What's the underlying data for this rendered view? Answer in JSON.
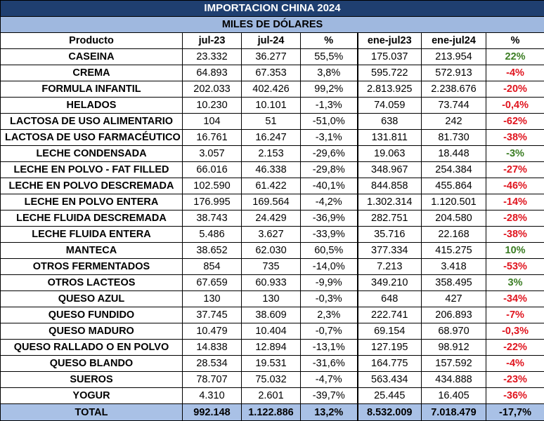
{
  "title": "IMPORTACION CHINA 2024",
  "subtitle": "MILES DE DÓLARES",
  "columns": [
    "Producto",
    "jul-23",
    "jul-24",
    "%",
    "ene-jul23",
    "ene-jul24",
    "%"
  ],
  "rows": [
    {
      "producto": "CASEINA",
      "jul23": "23.332",
      "jul24": "36.277",
      "pct": "55,5%",
      "enejul23": "175.037",
      "enejul24": "213.954",
      "pct_ytd": "22%",
      "trend": "pos"
    },
    {
      "producto": "CREMA",
      "jul23": "64.893",
      "jul24": "67.353",
      "pct": "3,8%",
      "enejul23": "595.722",
      "enejul24": "572.913",
      "pct_ytd": "-4%",
      "trend": "neg"
    },
    {
      "producto": "FORMULA INFANTIL",
      "jul23": "202.033",
      "jul24": "402.426",
      "pct": "99,2%",
      "enejul23": "2.813.925",
      "enejul24": "2.238.676",
      "pct_ytd": "-20%",
      "trend": "neg"
    },
    {
      "producto": "HELADOS",
      "jul23": "10.230",
      "jul24": "10.101",
      "pct": "-1,3%",
      "enejul23": "74.059",
      "enejul24": "73.744",
      "pct_ytd": "-0,4%",
      "trend": "neg"
    },
    {
      "producto": "LACTOSA DE USO ALIMENTARIO",
      "jul23": "104",
      "jul24": "51",
      "pct": "-51,0%",
      "enejul23": "638",
      "enejul24": "242",
      "pct_ytd": "-62%",
      "trend": "neg"
    },
    {
      "producto": "LACTOSA DE USO FARMACÉUTICO",
      "jul23": "16.761",
      "jul24": "16.247",
      "pct": "-3,1%",
      "enejul23": "131.811",
      "enejul24": "81.730",
      "pct_ytd": "-38%",
      "trend": "neg"
    },
    {
      "producto": "LECHE CONDENSADA",
      "jul23": "3.057",
      "jul24": "2.153",
      "pct": "-29,6%",
      "enejul23": "19.063",
      "enejul24": "18.448",
      "pct_ytd": "-3%",
      "trend": "pos"
    },
    {
      "producto": "LECHE EN POLVO - FAT FILLED",
      "jul23": "66.016",
      "jul24": "46.338",
      "pct": "-29,8%",
      "enejul23": "348.967",
      "enejul24": "254.384",
      "pct_ytd": "-27%",
      "trend": "neg"
    },
    {
      "producto": "LECHE EN POLVO DESCREMADA",
      "jul23": "102.590",
      "jul24": "61.422",
      "pct": "-40,1%",
      "enejul23": "844.858",
      "enejul24": "455.864",
      "pct_ytd": "-46%",
      "trend": "neg"
    },
    {
      "producto": "LECHE EN POLVO ENTERA",
      "jul23": "176.995",
      "jul24": "169.564",
      "pct": "-4,2%",
      "enejul23": "1.302.314",
      "enejul24": "1.120.501",
      "pct_ytd": "-14%",
      "trend": "neg"
    },
    {
      "producto": "LECHE FLUIDA DESCREMADA",
      "jul23": "38.743",
      "jul24": "24.429",
      "pct": "-36,9%",
      "enejul23": "282.751",
      "enejul24": "204.580",
      "pct_ytd": "-28%",
      "trend": "neg"
    },
    {
      "producto": "LECHE FLUIDA ENTERA",
      "jul23": "5.486",
      "jul24": "3.627",
      "pct": "-33,9%",
      "enejul23": "35.716",
      "enejul24": "22.168",
      "pct_ytd": "-38%",
      "trend": "neg"
    },
    {
      "producto": "MANTECA",
      "jul23": "38.652",
      "jul24": "62.030",
      "pct": "60,5%",
      "enejul23": "377.334",
      "enejul24": "415.275",
      "pct_ytd": "10%",
      "trend": "pos"
    },
    {
      "producto": "OTROS FERMENTADOS",
      "jul23": "854",
      "jul24": "735",
      "pct": "-14,0%",
      "enejul23": "7.213",
      "enejul24": "3.418",
      "pct_ytd": "-53%",
      "trend": "neg"
    },
    {
      "producto": "OTROS LACTEOS",
      "jul23": "67.659",
      "jul24": "60.933",
      "pct": "-9,9%",
      "enejul23": "349.210",
      "enejul24": "358.495",
      "pct_ytd": "3%",
      "trend": "pos"
    },
    {
      "producto": "QUESO AZUL",
      "jul23": "130",
      "jul24": "130",
      "pct": "-0,3%",
      "enejul23": "648",
      "enejul24": "427",
      "pct_ytd": "-34%",
      "trend": "neg"
    },
    {
      "producto": "QUESO FUNDIDO",
      "jul23": "37.745",
      "jul24": "38.609",
      "pct": "2,3%",
      "enejul23": "222.741",
      "enejul24": "206.893",
      "pct_ytd": "-7%",
      "trend": "neg"
    },
    {
      "producto": "QUESO MADURO",
      "jul23": "10.479",
      "jul24": "10.404",
      "pct": "-0,7%",
      "enejul23": "69.154",
      "enejul24": "68.970",
      "pct_ytd": "-0,3%",
      "trend": "neg"
    },
    {
      "producto": "QUESO RALLADO O EN POLVO",
      "jul23": "14.838",
      "jul24": "12.894",
      "pct": "-13,1%",
      "enejul23": "127.195",
      "enejul24": "98.912",
      "pct_ytd": "-22%",
      "trend": "neg"
    },
    {
      "producto": "QUESO BLANDO",
      "jul23": "28.534",
      "jul24": "19.531",
      "pct": "-31,6%",
      "enejul23": "164.775",
      "enejul24": "157.592",
      "pct_ytd": "-4%",
      "trend": "neg"
    },
    {
      "producto": "SUEROS",
      "jul23": "78.707",
      "jul24": "75.032",
      "pct": "-4,7%",
      "enejul23": "563.434",
      "enejul24": "434.888",
      "pct_ytd": "-23%",
      "trend": "neg"
    },
    {
      "producto": "YOGUR",
      "jul23": "4.310",
      "jul24": "2.601",
      "pct": "-39,7%",
      "enejul23": "25.445",
      "enejul24": "16.405",
      "pct_ytd": "-36%",
      "trend": "neg"
    }
  ],
  "total": {
    "producto": "TOTAL",
    "jul23": "992.148",
    "jul24": "1.122.886",
    "pct": "13,2%",
    "enejul23": "8.532.009",
    "enejul24": "7.018.479",
    "pct_ytd": "-17,7%"
  },
  "colors": {
    "title_bg": "#1f3f70",
    "subtitle_bg": "#9fb8df",
    "total_bg": "#a9c1e6",
    "positive": "#3b7d23",
    "negative": "#e0141e"
  }
}
